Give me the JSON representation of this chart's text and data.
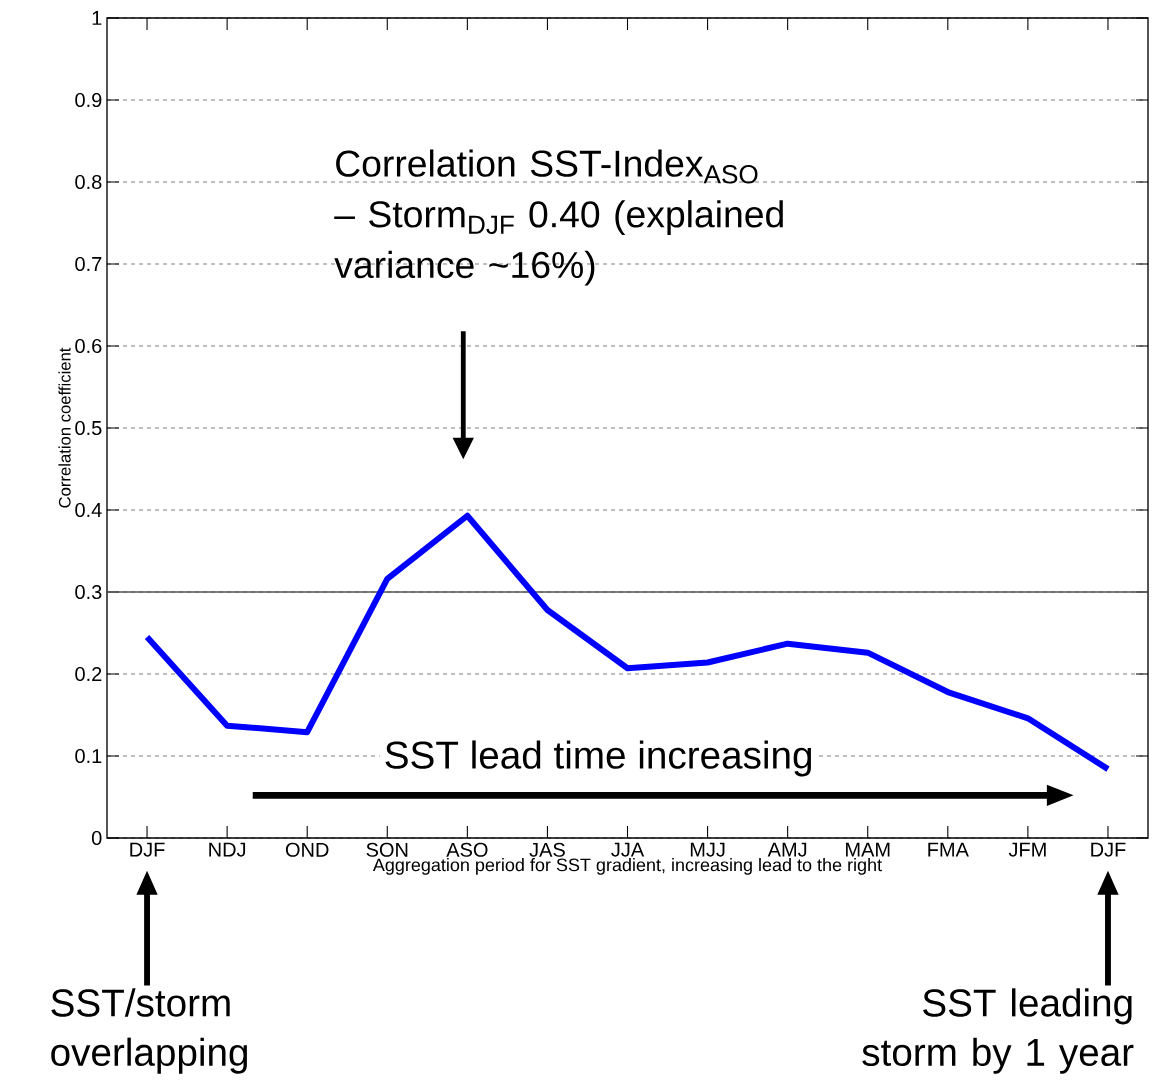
{
  "chart_data": {
    "type": "line",
    "xlabel": "Aggregation period for SST gradient, increasing lead to the right",
    "ylabel": "Correlation coefficient",
    "categories": [
      "DJF",
      "NDJ",
      "OND",
      "SON",
      "ASO",
      "JAS",
      "JJA",
      "MJJ",
      "AMJ",
      "MAM",
      "FMA",
      "JFM",
      "DJF"
    ],
    "series": [
      {
        "color": "#0000ff",
        "values": [
          0.245,
          0.137,
          0.129,
          0.316,
          0.393,
          0.278,
          0.207,
          0.214,
          0.237,
          0.226,
          0.178,
          0.146,
          0.084
        ]
      }
    ],
    "ylim": [
      0,
      1
    ],
    "yticks": [
      0,
      0.1,
      0.2,
      0.3,
      0.4,
      0.5,
      0.6,
      0.7,
      0.8,
      0.9,
      1
    ],
    "grid": "y",
    "line_style": "solid",
    "ref_lines": [
      {
        "axis": "y",
        "value": 0.3,
        "color": "#555555",
        "line_style": "solid"
      }
    ],
    "annotations": [
      "Correlation SST-Index$_{ASO}$ – Storm$_{DJF}$ 0.40 (explained variance ~16%)",
      "SST lead time increasing",
      "SST/storm overlapping",
      "SST leading storm by 1 year"
    ]
  }
}
